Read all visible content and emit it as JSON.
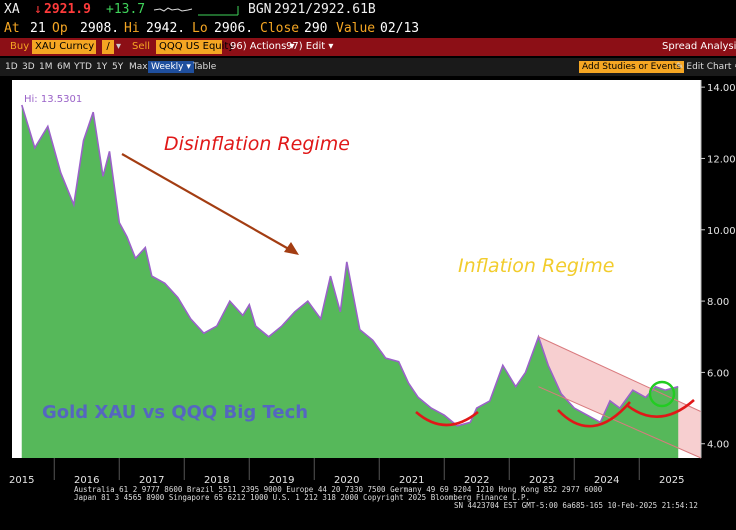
{
  "quote": {
    "ticker": "XA",
    "arrow": "↓",
    "last": "2921.9",
    "change": "+13.7",
    "source": "BGN",
    "bid_ask": "2921/2922.61B",
    "at_label": "At",
    "time": "21",
    "op_label": "Op",
    "open": "2908.",
    "hi_label": "Hi",
    "high": "2942.",
    "lo_label": "Lo",
    "low": "2906.",
    "close_label": "Close",
    "close": "290",
    "value_label": "Value",
    "date": "02/13"
  },
  "toolbar": {
    "buy": "Buy",
    "security1": "XAU Curncy",
    "slash": "/",
    "sell": "Sell",
    "security2": "QQQ US Equity",
    "actions": "96) Actions ▾",
    "edit": "97) Edit ▾",
    "spread": "Spread Analysis"
  },
  "periods": {
    "items": [
      "1D",
      "3D",
      "1M",
      "6M",
      "YTD",
      "1Y",
      "5Y",
      "Max"
    ],
    "selected": "Weekly ▾",
    "table": "Table",
    "add_studies": "Add Studies or Events",
    "edit_chart": "✎ Edit Chart ⚙"
  },
  "colors": {
    "area_fill": "#56b85a",
    "area_line": "#9a62c8",
    "channel_fill": "#f7cfd0",
    "channel_line": "#d97a7e",
    "annotation_red": "#e01818",
    "annotation_yellow": "#f2cc2c",
    "arrow": "#a33d12",
    "circle": "#22cc22",
    "watermark": "#5566c0"
  },
  "chart_data": {
    "type": "area",
    "series": [
      {
        "x": [
          2015.0,
          2015.2,
          2015.4,
          2015.6,
          2015.8,
          2015.95,
          2016.1,
          2016.25,
          2016.35,
          2016.5,
          2016.62,
          2016.75,
          2016.9,
          2017.0,
          2017.2,
          2017.4,
          2017.6,
          2017.8,
          2018.0,
          2018.2,
          2018.4,
          2018.5,
          2018.6,
          2018.8,
          2019.0,
          2019.2,
          2019.4,
          2019.6,
          2019.75,
          2019.9,
          2020.0,
          2020.2,
          2020.4,
          2020.6,
          2020.8,
          2020.95,
          2021.1,
          2021.3,
          2021.5,
          2021.7,
          2021.9,
          2022.0,
          2022.2,
          2022.4,
          2022.6,
          2022.75,
          2022.95,
          2023.1,
          2023.3,
          2023.5,
          2023.7,
          2023.9,
          2024.05,
          2024.2,
          2024.4,
          2024.6,
          2024.75,
          2024.9,
          2025.1
        ],
        "y": [
          13.5,
          12.3,
          12.9,
          11.6,
          10.7,
          12.5,
          13.3,
          11.5,
          12.2,
          10.2,
          9.8,
          9.2,
          9.5,
          8.7,
          8.5,
          8.1,
          7.5,
          7.1,
          7.3,
          8.0,
          7.6,
          7.9,
          7.3,
          7.0,
          7.3,
          7.7,
          8.0,
          7.5,
          8.7,
          7.7,
          9.1,
          7.2,
          6.9,
          6.4,
          6.3,
          5.7,
          5.3,
          5.0,
          4.8,
          4.5,
          4.6,
          5.0,
          5.2,
          6.2,
          5.6,
          6.0,
          7.0,
          6.2,
          5.4,
          5.0,
          4.8,
          4.6,
          5.2,
          5.0,
          5.5,
          5.3,
          5.6,
          5.5,
          5.6
        ]
      }
    ],
    "xlim": [
      2014.85,
      2025.45
    ],
    "ylim": [
      3.6,
      14.2
    ],
    "x_ticks": [
      "2015",
      "2016",
      "2017",
      "2018",
      "2019",
      "2020",
      "2021",
      "2022",
      "2023",
      "2024",
      "2025"
    ],
    "y_ticks": [
      "4.00",
      "6.00",
      "8.00",
      "10.00",
      "12.00",
      "14.00"
    ],
    "hi_label": "Hi: 13.5301",
    "annotations": {
      "disinflation": "Disinflation Regime",
      "inflation": "Inflation Regime",
      "watermark": "Gold XAU vs QQQ Big Tech"
    },
    "grid": false
  },
  "footer": {
    "line1": "Australia 61 2 9777 8600 Brazil 5511 2395 9000 Europe 44 20 7330 7500 Germany 49 69 9204 1210 Hong Kong 852 2977 6000",
    "line2": "Japan 81 3 4565 8900          Singapore 65 6212 1000       U.S. 1 212 318 2000          Copyright 2025 Bloomberg Finance L.P.",
    "line3": "SN 4423704 EST  GMT-5:00 6a685-165 10-Feb-2025 21:54:12"
  }
}
